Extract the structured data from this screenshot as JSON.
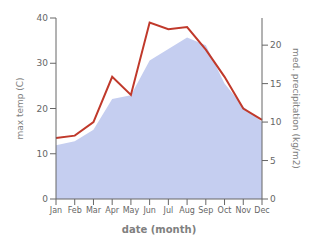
{
  "chart_data": {
    "type": "line",
    "categories": [
      "Jan",
      "Feb",
      "Mar",
      "Apr",
      "May",
      "Jun",
      "Jul",
      "Aug",
      "Sep",
      "Oct",
      "Nov",
      "Dec"
    ],
    "series": [
      {
        "type": "area",
        "axis": "y2",
        "color": "#c5cef0",
        "values": [
          7.0,
          7.5,
          9.0,
          13.0,
          13.5,
          18.0,
          19.5,
          21.0,
          20.0,
          15.0,
          12.0,
          10.0
        ]
      },
      {
        "type": "line",
        "color": "#c0392b",
        "values": [
          13.5,
          14.0,
          17.0,
          27.0,
          23.0,
          39.0,
          37.5,
          38.0,
          33.0,
          27.0,
          20.0,
          17.5
        ]
      }
    ],
    "xlabel": "date (month)",
    "ylabel": "max temp (C)",
    "y2label": "med. precipitation (kg/m2)",
    "ylim": [
      0,
      40
    ],
    "yticks": [
      0,
      10,
      20,
      30,
      40
    ],
    "y2lim": [
      0,
      23.529
    ],
    "y2ticks": [
      0,
      5,
      10,
      15,
      20
    ],
    "grid": false
  }
}
